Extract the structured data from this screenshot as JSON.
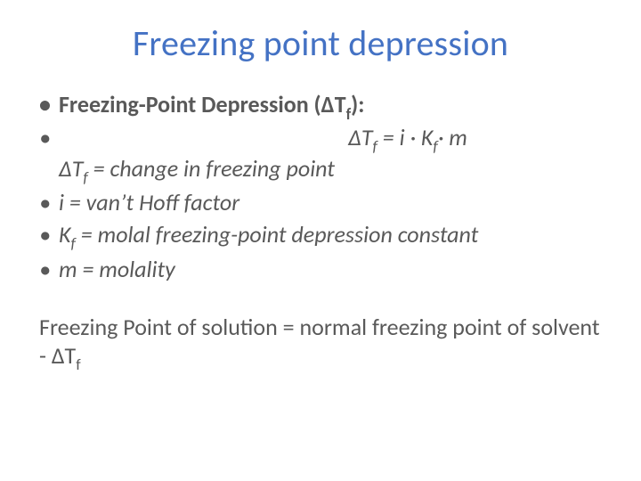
{
  "colors": {
    "title": "#4472c4",
    "body": "#595959",
    "background": "#ffffff"
  },
  "typography": {
    "title_fontsize": 40,
    "body_fontsize": 26,
    "subscript_scale": 0.68,
    "font_family": "Calibri"
  },
  "title": "Freezing point depression",
  "heading": {
    "label_prefix": "Freezing-Point Depression (",
    "delta": "Δ",
    "var": "T",
    "sub": "f",
    "label_suffix": "):"
  },
  "formula": {
    "lhs_delta": "Δ",
    "lhs_var": "T",
    "lhs_sub": "f",
    "eq": " = i ",
    "dot": "·",
    "k": " K",
    "k_sub": "f",
    "dot2": "·",
    "m": " m"
  },
  "defs": [
    {
      "prefix": "Δ",
      "var": "T",
      "sub": "f",
      "rest": " = change in freezing point"
    },
    {
      "rest_full": "i = van’t Hoff factor"
    },
    {
      "var": "K",
      "sub": "f",
      "rest": " = molal freezing-point depression constant"
    },
    {
      "rest_full": "m = molality"
    }
  ],
  "footer": {
    "text_prefix": "Freezing Point of solution = normal freezing point of solvent - ",
    "delta": "Δ",
    "var": "T",
    "sub": "f"
  }
}
